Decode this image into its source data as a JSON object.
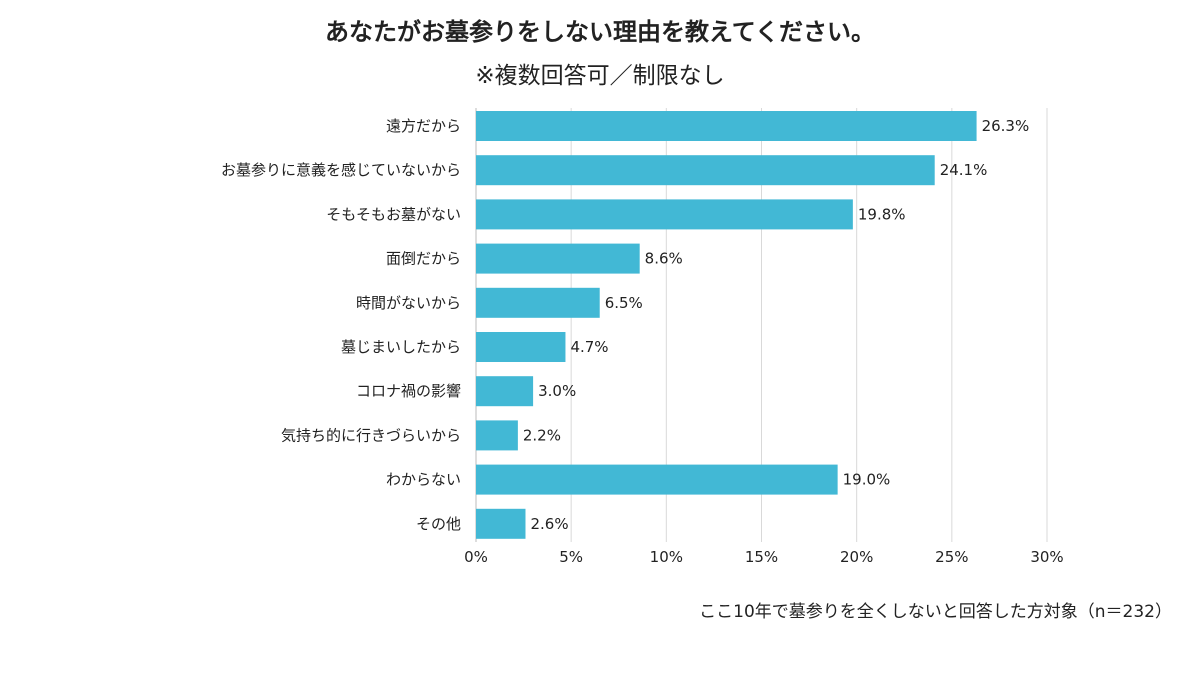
{
  "chart_data": {
    "type": "bar",
    "orientation": "horizontal",
    "title": "あなたがお墓参りをしない理由を教えてください。",
    "subtitle": "※複数回答可／制限なし",
    "note": "ここ10年で墓参りを全くしないと回答した方対象（n＝232）",
    "categories": [
      "遠方だから",
      "お墓参りに意義を感じていないから",
      "そもそもお墓がない",
      "面倒だから",
      "時間がないから",
      "墓じまいしたから",
      "コロナ禍の影響",
      "気持ち的に行きづらいから",
      "わからない",
      "その他"
    ],
    "values": [
      26.3,
      24.1,
      19.8,
      8.6,
      6.5,
      4.7,
      3.0,
      2.2,
      19.0,
      2.6
    ],
    "value_labels": [
      "26.3%",
      "24.1%",
      "19.8%",
      "8.6%",
      "6.5%",
      "4.7%",
      "3.0%",
      "2.2%",
      "19.0%",
      "2.6%"
    ],
    "xlim": [
      0,
      30
    ],
    "xticks": [
      "0%",
      "5%",
      "10%",
      "15%",
      "20%",
      "25%",
      "30%"
    ],
    "grid": true,
    "bar_color": "#42b8d5",
    "grid_color": "#d9d9d9"
  }
}
